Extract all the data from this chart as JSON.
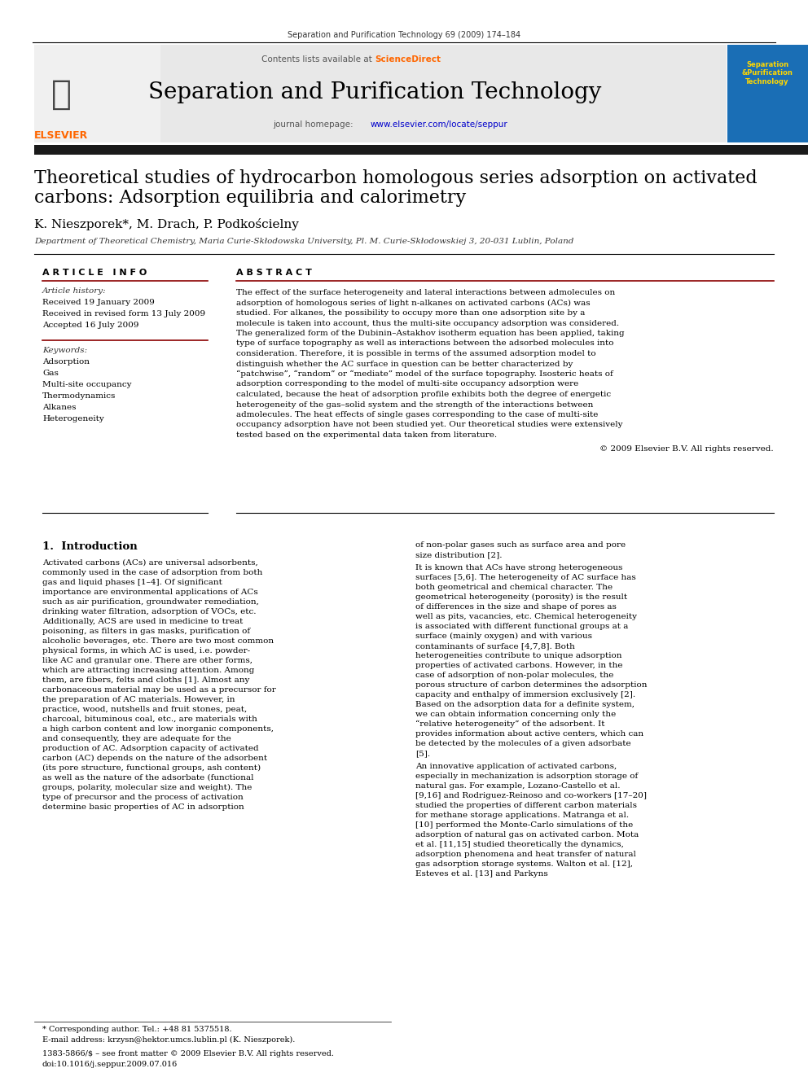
{
  "page_bg": "#ffffff",
  "top_journal_ref": "Separation and Purification Technology 69 (2009) 174–184",
  "journal_title": "Separation and Purification Technology",
  "journal_homepage": "journal homepage: www.elsevier.com/locate/seppur",
  "contents_line": "Contents lists available at ScienceDirect",
  "header_bg": "#e8e8e8",
  "dark_bar_color": "#1a1a1a",
  "article_title_line1": "Theoretical studies of hydrocarbon homologous series adsorption on activated",
  "article_title_line2": "carbons: Adsorption equilibria and calorimetry",
  "authors": "K. Nieszporek*, M. Drach, P. Podkościelny",
  "affiliation": "Department of Theoretical Chemistry, Maria Curie-Skłodowska University, Pl. M. Curie-Skłodowskiej 3, 20-031 Lublin, Poland",
  "article_info_title": "A R T I C L E   I N F O",
  "abstract_title": "A B S T R A C T",
  "article_history_label": "Article history:",
  "received1": "Received 19 January 2009",
  "received2": "Received in revised form 13 July 2009",
  "accepted": "Accepted 16 July 2009",
  "keywords_label": "Keywords:",
  "keywords": [
    "Adsorption",
    "Gas",
    "Multi-site occupancy",
    "Thermodynamics",
    "Alkanes",
    "Heterogeneity"
  ],
  "abstract_text": "The effect of the surface heterogeneity and lateral interactions between admolecules on adsorption of homologous series of light n-alkanes on activated carbons (ACs) was studied. For alkanes, the possibility to occupy more than one adsorption site by a molecule is taken into account, thus the multi-site occupancy adsorption was considered. The generalized form of the Dubinin–Astakhov isotherm equation has been applied, taking type of surface topography as well as interactions between the adsorbed molecules into consideration. Therefore, it is possible in terms of the assumed adsorption model to distinguish whether the AC surface in question can be better characterized by “patchwise”, “random” or “mediate” model of the surface topography. Isosteric heats of adsorption corresponding to the model of multi-site occupancy adsorption were calculated, because the heat of adsorption profile exhibits both the degree of energetic heterogeneity of the gas–solid system and the strength of the interactions between admolecules. The heat effects of single gases corresponding to the case of multi-site occupancy adsorption have not been studied yet. Our theoretical studies were extensively tested based on the experimental data taken from literature.",
  "copyright": "© 2009 Elsevier B.V. All rights reserved.",
  "intro_title": "1.  Introduction",
  "intro_col1": "Activated carbons (ACs) are universal adsorbents, commonly used in the case of adsorption from both gas and liquid phases [1–4]. Of significant importance are environmental applications of ACs such as air purification, groundwater remediation, drinking water filtration, adsorption of VOCs, etc. Additionally, ACS are used in medicine to treat poisoning, as filters in gas masks, purification of alcoholic beverages, etc. There are two most common physical forms, in which AC is used, i.e. powder-like AC and granular one. There are other forms, which are attracting increasing attention. Among them, are fibers, felts and cloths [1]. Almost any carbonaceous material may be used as a precursor for the preparation of AC materials. However, in practice, wood, nutshells and fruit stones, peat, charcoal, bituminous coal, etc., are materials with a high carbon content and low inorganic components, and consequently, they are adequate for the production of AC. Adsorption capacity of activated carbon (AC) depends on the nature of the adsorbent (its pore structure, functional groups, ash content) as well as the nature of the adsorbate (functional groups, polarity, molecular size and weight). The type of precursor and the process of activation determine basic properties of AC in adsorption",
  "intro_col2": "of non-polar gases such as surface area and pore size distribution [2].\n    It is known that ACs have strong heterogeneous surfaces [5,6]. The heterogeneity of AC surface has both geometrical and chemical character. The geometrical heterogeneity (porosity) is the result of differences in the size and shape of pores as well as pits, vacancies, etc. Chemical heterogeneity is associated with different functional groups at a surface (mainly oxygen) and with various contaminants of surface [4,7,8]. Both heterogeneities contribute to unique adsorption properties of activated carbons. However, in the case of adsorption of non-polar molecules, the porous structure of carbon determines the adsorption capacity and enthalpy of immersion exclusively [2]. Based on the adsorption data for a definite system, we can obtain information concerning only the “relative heterogeneity” of the adsorbent. It provides information about active centers, which can be detected by the molecules of a given adsorbate [5].\n    An innovative application of activated carbons, especially in mechanization is adsorption storage of natural gas. For example, Lozano-Castello et al. [9,16] and Rodriguez-Reinoso and co-workers [17–20] studied the properties of different carbon materials for methane storage applications. Matranga et al. [10] performed the Monte-Carlo simulations of the adsorption of natural gas on activated carbon. Mota et al. [11,15] studied theoretically the dynamics, adsorption phenomena and heat transfer of natural gas adsorption storage systems. Walton et al. [12], Esteves et al. [13] and Parkyns",
  "footer_left": "* Corresponding author. Tel.: +48 81 5375518.",
  "footer_email": "E-mail address: krzysn@hektor.umcs.lublin.pl (K. Nieszporek).",
  "footer_issn": "1383-5866/$ – see front matter © 2009 Elsevier B.V. All rights reserved.",
  "footer_doi": "doi:10.1016/j.seppur.2009.07.016",
  "elsevier_logo_color": "#ff6600",
  "sciencedirect_color": "#ff6600",
  "link_color": "#0000cc",
  "title_color": "#000000",
  "section_line_color": "#8b0000"
}
